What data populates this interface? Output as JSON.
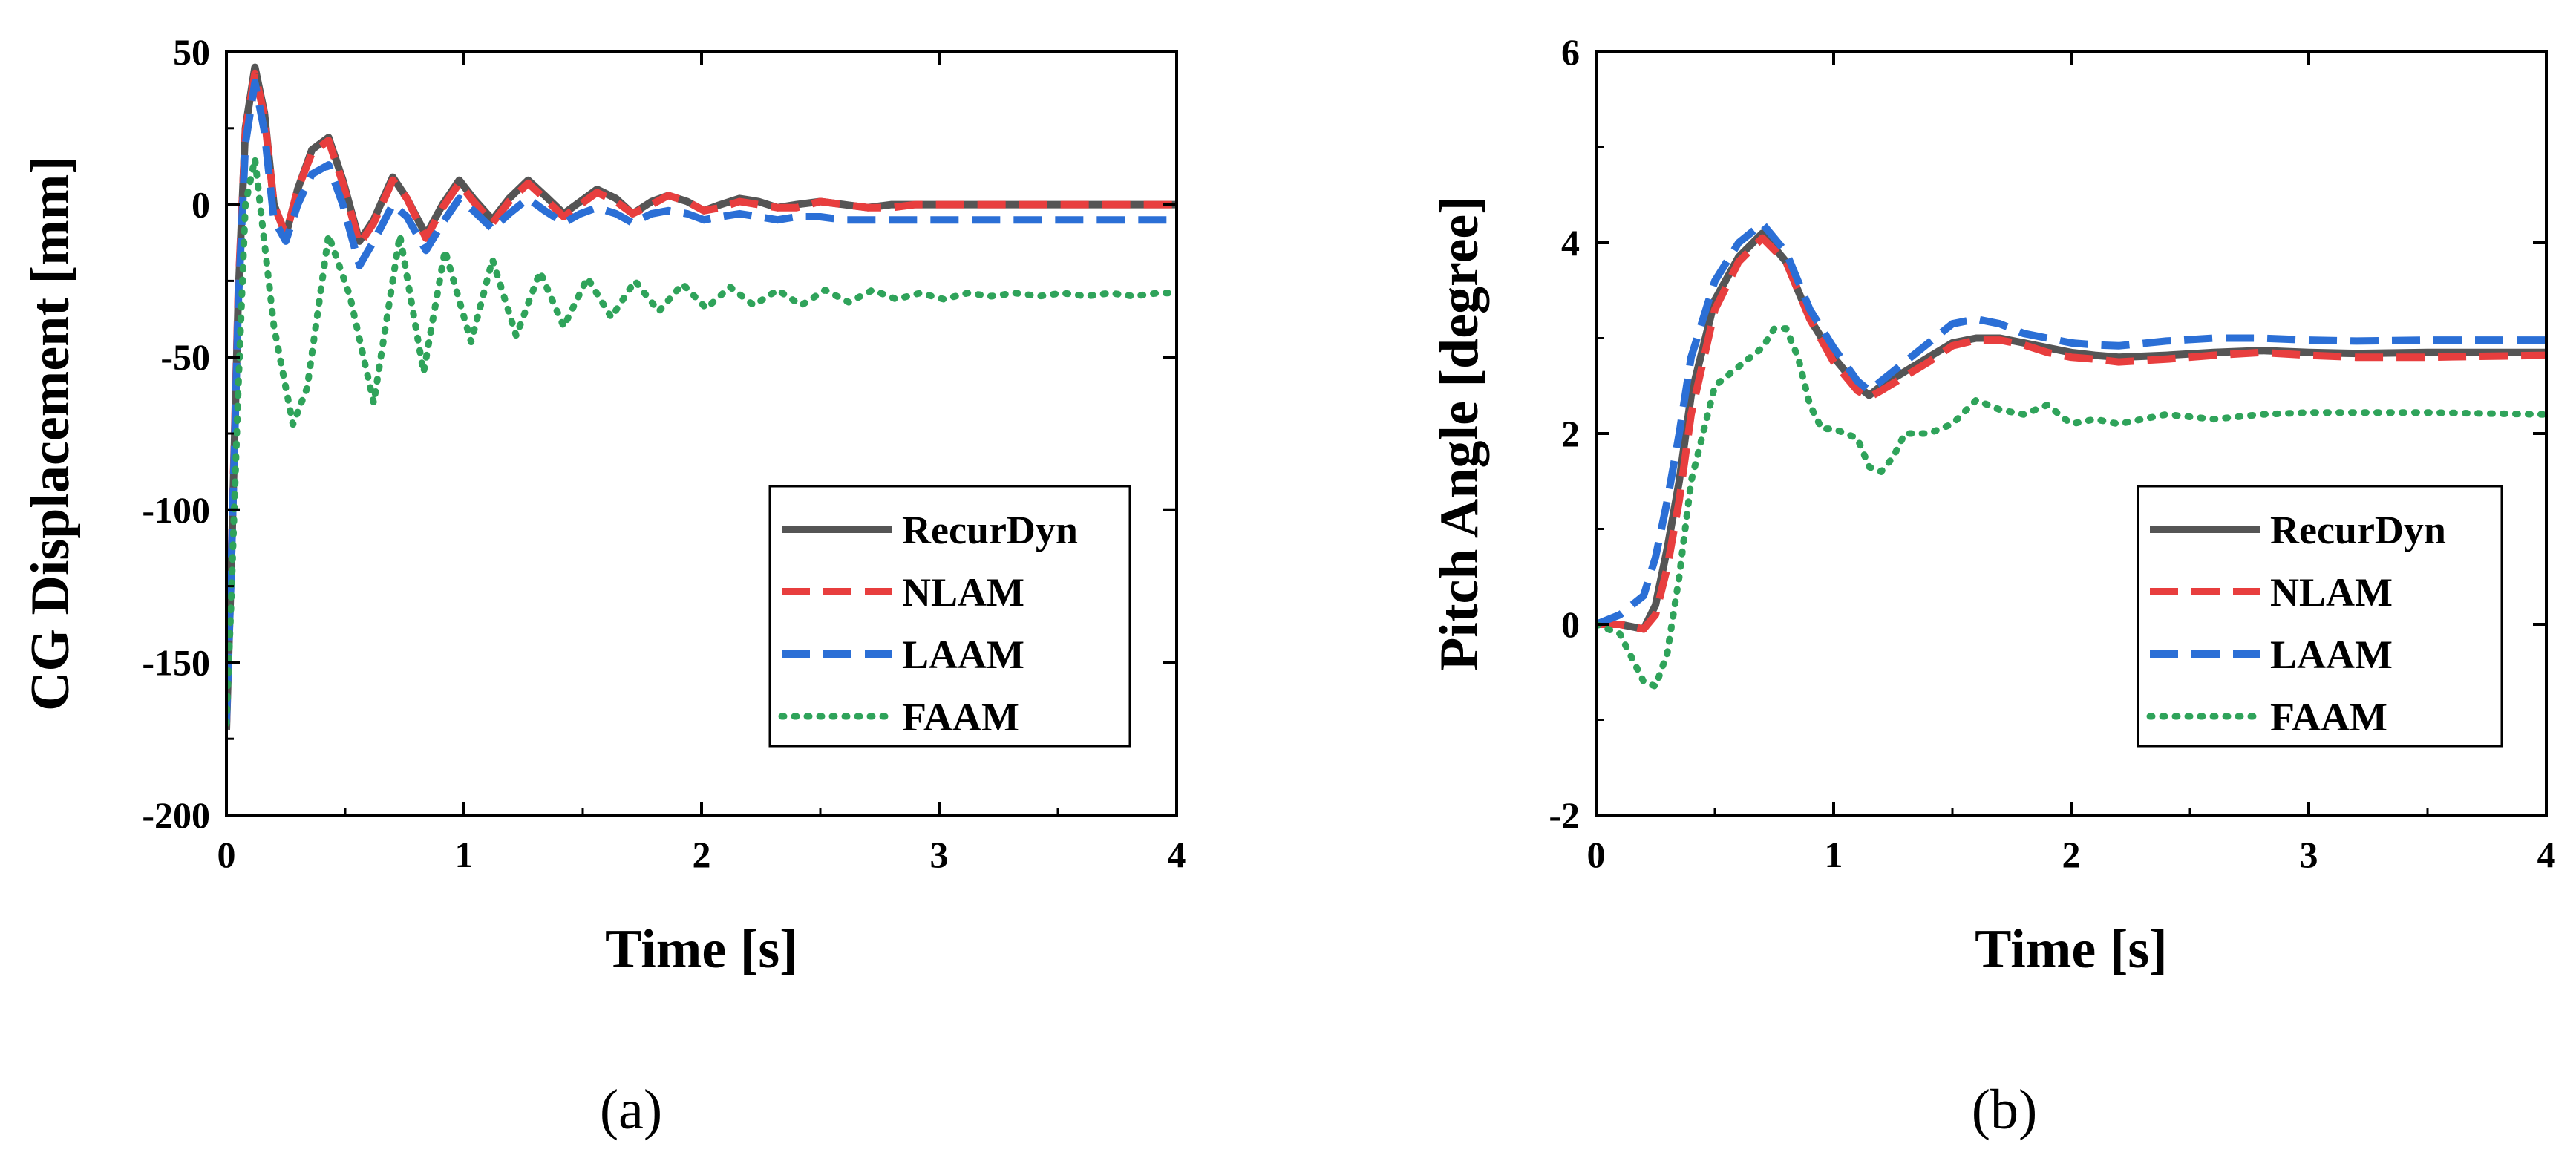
{
  "chart_data": [
    {
      "type": "line",
      "panel_label": "(a)",
      "xlabel": "Time [s]",
      "ylabel": "CG Displacement [mm]",
      "xlim": [
        0,
        4
      ],
      "ylim": [
        -200,
        50
      ],
      "xticks": [
        0,
        1,
        2,
        3,
        4
      ],
      "yticks": [
        50,
        0,
        -50,
        -100,
        -150,
        -200
      ],
      "legend_position": "lower-right",
      "series": [
        {
          "name": "RecurDyn",
          "color": "#555555",
          "style": "solid",
          "x": [
            0,
            0.02,
            0.05,
            0.08,
            0.12,
            0.16,
            0.2,
            0.25,
            0.3,
            0.36,
            0.43,
            0.49,
            0.56,
            0.62,
            0.7,
            0.76,
            0.84,
            0.91,
            0.98,
            1.04,
            1.12,
            1.19,
            1.27,
            1.34,
            1.42,
            1.49,
            1.56,
            1.64,
            1.71,
            1.79,
            1.86,
            1.94,
            2.01,
            2.08,
            2.16,
            2.24,
            2.32,
            2.4,
            2.5,
            2.6,
            2.7,
            2.8,
            2.9,
            3.0,
            3.2,
            3.4,
            3.6,
            3.8,
            4.0
          ],
          "y": [
            -172,
            -120,
            -30,
            25,
            45,
            30,
            0,
            -10,
            5,
            18,
            22,
            8,
            -12,
            -5,
            9,
            2,
            -10,
            0,
            8,
            2,
            -5,
            2,
            8,
            3,
            -3,
            1,
            5,
            2,
            -3,
            1,
            3,
            1,
            -2,
            0,
            2,
            1,
            -1,
            0,
            1,
            0,
            -1,
            0,
            0,
            0,
            0,
            0,
            0,
            0,
            0
          ]
        },
        {
          "name": "NLAM",
          "color": "#e83e3e",
          "style": "dashed",
          "x": [
            0,
            0.02,
            0.05,
            0.08,
            0.12,
            0.16,
            0.2,
            0.25,
            0.3,
            0.36,
            0.43,
            0.49,
            0.56,
            0.62,
            0.7,
            0.76,
            0.84,
            0.91,
            0.98,
            1.04,
            1.12,
            1.19,
            1.27,
            1.34,
            1.42,
            1.49,
            1.56,
            1.64,
            1.71,
            1.79,
            1.86,
            1.94,
            2.01,
            2.08,
            2.16,
            2.24,
            2.32,
            2.4,
            2.5,
            2.6,
            2.7,
            2.8,
            2.9,
            3.0,
            3.2,
            3.4,
            3.6,
            3.8,
            4.0
          ],
          "y": [
            -170,
            -118,
            -28,
            24,
            43,
            29,
            0,
            -10,
            5,
            17,
            21,
            7,
            -13,
            -6,
            8,
            2,
            -11,
            -1,
            7,
            1,
            -6,
            1,
            7,
            2,
            -4,
            0,
            4,
            1,
            -3,
            0,
            3,
            1,
            -2,
            -1,
            1,
            0,
            -1,
            -1,
            1,
            0,
            -1,
            -1,
            0,
            0,
            0,
            0,
            0,
            0,
            0
          ]
        },
        {
          "name": "LAAM",
          "color": "#2b6fd6",
          "style": "dashed",
          "x": [
            0,
            0.02,
            0.05,
            0.08,
            0.12,
            0.16,
            0.2,
            0.25,
            0.3,
            0.36,
            0.43,
            0.49,
            0.56,
            0.62,
            0.7,
            0.76,
            0.84,
            0.91,
            0.98,
            1.04,
            1.12,
            1.19,
            1.27,
            1.34,
            1.42,
            1.49,
            1.56,
            1.64,
            1.71,
            1.79,
            1.86,
            1.94,
            2.01,
            2.08,
            2.16,
            2.24,
            2.32,
            2.4,
            2.5,
            2.6,
            2.7,
            2.8,
            2.9,
            3.0,
            3.2,
            3.4,
            3.6,
            3.8,
            4.0
          ],
          "y": [
            -170,
            -120,
            -32,
            20,
            40,
            24,
            -5,
            -12,
            0,
            10,
            13,
            0,
            -20,
            -12,
            0,
            -4,
            -15,
            -6,
            2,
            -2,
            -8,
            -3,
            2,
            -2,
            -6,
            -3,
            -1,
            -3,
            -6,
            -3,
            -2,
            -3,
            -5,
            -4,
            -3,
            -4,
            -5,
            -4,
            -4,
            -5,
            -5,
            -5,
            -5,
            -5,
            -5,
            -5,
            -5,
            -5,
            -5
          ]
        },
        {
          "name": "FAAM",
          "color": "#2fa35a",
          "style": "dotted",
          "x": [
            0,
            0.02,
            0.05,
            0.08,
            0.12,
            0.2,
            0.28,
            0.34,
            0.43,
            0.52,
            0.62,
            0.73,
            0.83,
            0.92,
            1.03,
            1.12,
            1.22,
            1.32,
            1.42,
            1.52,
            1.62,
            1.72,
            1.82,
            1.92,
            2.02,
            2.12,
            2.22,
            2.32,
            2.42,
            2.52,
            2.62,
            2.72,
            2.82,
            2.92,
            3.02,
            3.12,
            3.22,
            3.32,
            3.42,
            3.52,
            3.62,
            3.72,
            3.82,
            3.92,
            4.0
          ],
          "y": [
            -170,
            -130,
            -60,
            0,
            15,
            -40,
            -72,
            -60,
            -10,
            -30,
            -65,
            -10,
            -55,
            -15,
            -45,
            -18,
            -43,
            -22,
            -40,
            -24,
            -37,
            -25,
            -35,
            -26,
            -34,
            -27,
            -33,
            -28,
            -33,
            -28,
            -32,
            -28,
            -31,
            -29,
            -31,
            -29,
            -30,
            -29,
            -30,
            -29,
            -30,
            -29,
            -30,
            -29,
            -29
          ]
        }
      ]
    },
    {
      "type": "line",
      "panel_label": "(b)",
      "xlabel": "Time [s]",
      "ylabel": "Pitch Angle [degree]",
      "xlim": [
        0,
        4
      ],
      "ylim": [
        -2,
        6
      ],
      "xticks": [
        0,
        1,
        2,
        3,
        4
      ],
      "yticks": [
        6,
        4,
        2,
        0,
        -2
      ],
      "legend_position": "lower-right",
      "series": [
        {
          "name": "RecurDyn",
          "color": "#555555",
          "style": "solid",
          "x": [
            0,
            0.1,
            0.2,
            0.25,
            0.3,
            0.35,
            0.4,
            0.5,
            0.6,
            0.7,
            0.8,
            0.9,
            1.0,
            1.1,
            1.15,
            1.2,
            1.3,
            1.4,
            1.5,
            1.6,
            1.7,
            1.8,
            1.9,
            2.0,
            2.1,
            2.2,
            2.4,
            2.6,
            2.8,
            3.0,
            3.2,
            3.5,
            4.0
          ],
          "y": [
            0,
            0,
            -0.05,
            0.2,
            0.8,
            1.5,
            2.4,
            3.4,
            3.85,
            4.1,
            3.8,
            3.2,
            2.8,
            2.5,
            2.4,
            2.5,
            2.65,
            2.8,
            2.95,
            3.0,
            3.0,
            2.95,
            2.9,
            2.85,
            2.82,
            2.8,
            2.82,
            2.85,
            2.87,
            2.85,
            2.84,
            2.85,
            2.85
          ]
        },
        {
          "name": "NLAM",
          "color": "#e83e3e",
          "style": "dashed",
          "x": [
            0,
            0.1,
            0.2,
            0.25,
            0.3,
            0.35,
            0.4,
            0.5,
            0.6,
            0.7,
            0.8,
            0.9,
            1.0,
            1.1,
            1.15,
            1.2,
            1.3,
            1.4,
            1.5,
            1.6,
            1.7,
            1.8,
            1.9,
            2.0,
            2.1,
            2.2,
            2.4,
            2.6,
            2.8,
            3.0,
            3.2,
            3.5,
            4.0
          ],
          "y": [
            0,
            0,
            -0.05,
            0.1,
            0.6,
            1.3,
            2.2,
            3.3,
            3.8,
            4.05,
            3.8,
            3.2,
            2.75,
            2.45,
            2.38,
            2.45,
            2.6,
            2.75,
            2.92,
            2.98,
            2.98,
            2.93,
            2.85,
            2.8,
            2.78,
            2.75,
            2.78,
            2.82,
            2.85,
            2.82,
            2.8,
            2.8,
            2.82
          ]
        },
        {
          "name": "LAAM",
          "color": "#2b6fd6",
          "style": "dashed",
          "x": [
            0,
            0.1,
            0.2,
            0.25,
            0.3,
            0.35,
            0.4,
            0.5,
            0.6,
            0.7,
            0.8,
            0.9,
            1.0,
            1.1,
            1.15,
            1.2,
            1.3,
            1.4,
            1.5,
            1.6,
            1.7,
            1.8,
            1.9,
            2.0,
            2.1,
            2.2,
            2.4,
            2.6,
            2.8,
            3.0,
            3.2,
            3.5,
            4.0
          ],
          "y": [
            0,
            0.1,
            0.3,
            0.7,
            1.3,
            2.0,
            2.8,
            3.6,
            4.0,
            4.2,
            3.9,
            3.3,
            2.9,
            2.55,
            2.45,
            2.55,
            2.75,
            2.95,
            3.15,
            3.2,
            3.15,
            3.05,
            3.0,
            2.95,
            2.93,
            2.92,
            2.97,
            3.0,
            3.0,
            2.98,
            2.97,
            2.98,
            2.98
          ]
        },
        {
          "name": "FAAM",
          "color": "#2fa35a",
          "style": "dotted",
          "x": [
            0,
            0.1,
            0.15,
            0.2,
            0.25,
            0.3,
            0.35,
            0.4,
            0.5,
            0.6,
            0.7,
            0.75,
            0.8,
            0.85,
            0.9,
            0.95,
            1.0,
            1.1,
            1.15,
            1.2,
            1.25,
            1.3,
            1.4,
            1.5,
            1.6,
            1.7,
            1.8,
            1.9,
            2.0,
            2.1,
            2.2,
            2.3,
            2.4,
            2.6,
            2.8,
            3.0,
            3.5,
            4.0
          ],
          "y": [
            0,
            -0.1,
            -0.35,
            -0.6,
            -0.65,
            -0.3,
            0.5,
            1.5,
            2.5,
            2.7,
            2.9,
            3.1,
            3.1,
            2.8,
            2.3,
            2.05,
            2.05,
            1.95,
            1.65,
            1.6,
            1.75,
            2.0,
            2.0,
            2.1,
            2.35,
            2.25,
            2.2,
            2.3,
            2.1,
            2.15,
            2.1,
            2.15,
            2.2,
            2.15,
            2.2,
            2.22,
            2.22,
            2.2
          ]
        }
      ]
    }
  ]
}
